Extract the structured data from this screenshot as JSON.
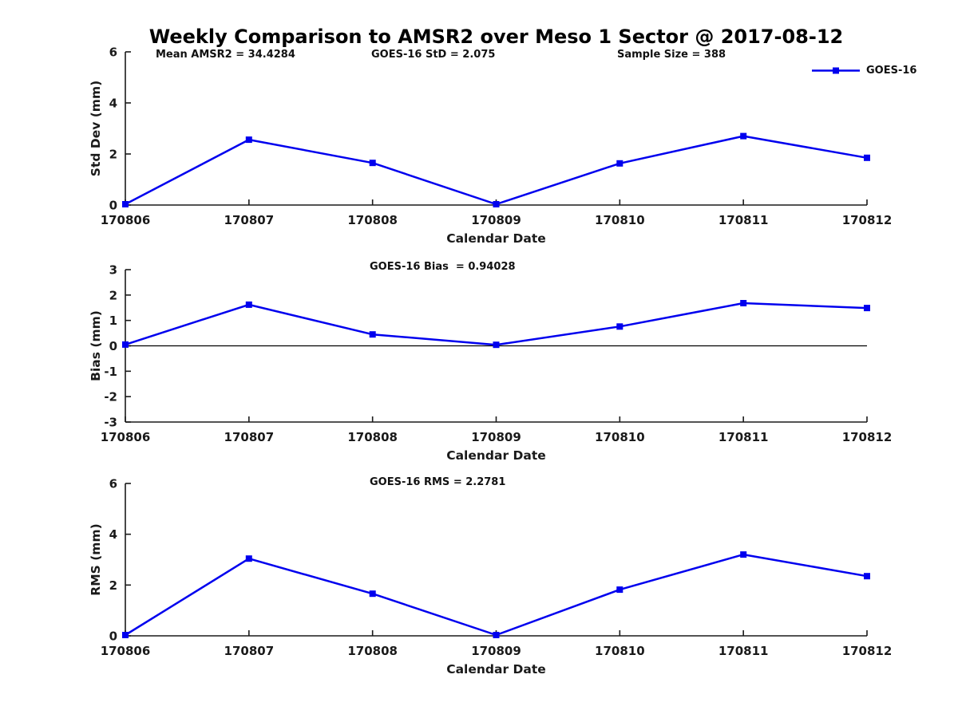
{
  "title": "Weekly Comparison to AMSR2 over Meso 1 Sector @ 2017-08-12",
  "annotations": {
    "mean_amsr2": "Mean AMSR2 = 34.4284",
    "goes16_std": "GOES-16 StD = 2.075",
    "sample_size": "Sample Size = 388"
  },
  "legend": {
    "label": "GOES-16"
  },
  "style": {
    "line_color": "#0000ee",
    "axis_color": "#1a1a1a",
    "text_color": "#1a1a1a",
    "zero_line_color": "#000000",
    "background": "#ffffff"
  },
  "chart_data": [
    {
      "type": "line",
      "subplot": "top",
      "title": "",
      "annotation": "",
      "xlabel": "Calendar Date",
      "ylabel": "Std Dev (mm)",
      "categories": [
        "170806",
        "170807",
        "170808",
        "170809",
        "170810",
        "170811",
        "170812"
      ],
      "series": [
        {
          "name": "GOES-16",
          "values": [
            0.03,
            2.56,
            1.65,
            0.03,
            1.63,
            2.7,
            1.85
          ]
        }
      ],
      "ylim": [
        0,
        6
      ],
      "yticks": [
        0,
        2,
        4,
        6
      ],
      "zero_line": false,
      "grid": false,
      "legend_position": "top-right"
    },
    {
      "type": "line",
      "subplot": "middle",
      "title": "",
      "annotation": "GOES-16 Bias  = 0.94028",
      "xlabel": "Calendar Date",
      "ylabel": "Bias (mm)",
      "categories": [
        "170806",
        "170807",
        "170808",
        "170809",
        "170810",
        "170811",
        "170812"
      ],
      "series": [
        {
          "name": "GOES-16",
          "values": [
            0.05,
            1.62,
            0.45,
            0.04,
            0.76,
            1.68,
            1.49
          ]
        }
      ],
      "ylim": [
        -3,
        3
      ],
      "yticks": [
        3,
        2,
        1,
        0,
        -1,
        -2,
        -3
      ],
      "zero_line": true,
      "grid": false,
      "legend_position": "none"
    },
    {
      "type": "line",
      "subplot": "bottom",
      "title": "",
      "annotation": "GOES-16 RMS = 2.2781",
      "xlabel": "Calendar Date",
      "ylabel": "RMS (mm)",
      "categories": [
        "170806",
        "170807",
        "170808",
        "170809",
        "170810",
        "170811",
        "170812"
      ],
      "series": [
        {
          "name": "GOES-16",
          "values": [
            0.03,
            3.04,
            1.66,
            0.03,
            1.82,
            3.2,
            2.35
          ]
        }
      ],
      "ylim": [
        0,
        6
      ],
      "yticks": [
        0,
        2,
        4,
        6
      ],
      "zero_line": false,
      "grid": false,
      "legend_position": "none"
    }
  ]
}
